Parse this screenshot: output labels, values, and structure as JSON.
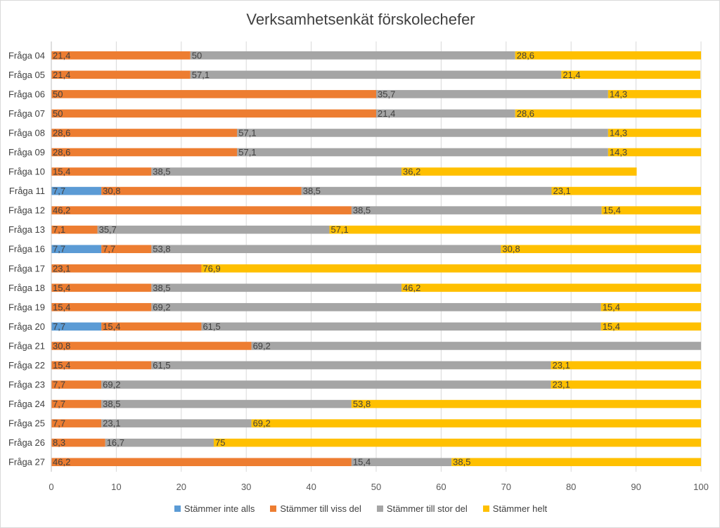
{
  "chart_data": {
    "type": "bar",
    "orientation": "horizontal",
    "stacked": true,
    "title": "Verksamhetsenkät förskolechefer",
    "xlabel": "",
    "ylabel": "",
    "xlim": [
      0,
      100
    ],
    "xticks": [
      "0",
      "10",
      "20",
      "30",
      "40",
      "50",
      "60",
      "70",
      "80",
      "90",
      "100"
    ],
    "grid": true,
    "legend_position": "bottom",
    "categories": [
      "Fråga 04",
      "Fråga 05",
      "Fråga 06",
      "Fråga 07",
      "Fråga 08",
      "Fråga 09",
      "Fråga 10",
      "Fråga 11",
      "Fråga 12",
      "Fråga 13",
      "Fråga 16",
      "Fråga 17",
      "Fråga 18",
      "Fråga 19",
      "Fråga 20",
      "Fråga 21",
      "Fråga 22",
      "Fråga 23",
      "Fråga 24",
      "Fråga 25",
      "Fråga 26",
      "Fråga 27"
    ],
    "series": [
      {
        "name": "Stämmer inte alls",
        "color": "#5b9bd5",
        "values": [
          0,
          0,
          0,
          0,
          0,
          0,
          0,
          7.7,
          0,
          0,
          7.7,
          0,
          0,
          0,
          7.7,
          0,
          0,
          0,
          0,
          0,
          0,
          0
        ],
        "labels": [
          "",
          "",
          "",
          "",
          "",
          "",
          "",
          "7,7",
          "",
          "",
          "7,7",
          "",
          "",
          "",
          "7,7",
          "",
          "",
          "",
          "",
          "",
          "",
          ""
        ]
      },
      {
        "name": "Stämmer till viss del",
        "color": "#ed7d31",
        "values": [
          21.4,
          21.4,
          50,
          50,
          28.6,
          28.6,
          15.4,
          30.8,
          46.2,
          7.1,
          7.7,
          23.1,
          15.4,
          15.4,
          15.4,
          30.8,
          15.4,
          7.7,
          7.7,
          7.7,
          8.3,
          46.2
        ],
        "labels": [
          "21,4",
          "21,4",
          "50",
          "50",
          "28,6",
          "28,6",
          "15,4",
          "30,8",
          "46,2",
          "7,1",
          "7,7",
          "23,1",
          "15,4",
          "15,4",
          "15,4",
          "30,8",
          "15,4",
          "7,7",
          "7,7",
          "7,7",
          "8,3",
          "46,2"
        ]
      },
      {
        "name": "Stämmer till stor del",
        "color": "#a5a5a5",
        "values": [
          50,
          57.1,
          35.7,
          21.4,
          57.1,
          57.1,
          38.5,
          38.5,
          38.5,
          35.7,
          53.8,
          0,
          38.5,
          69.2,
          61.5,
          69.2,
          61.5,
          69.2,
          38.5,
          23.1,
          16.7,
          15.4
        ],
        "labels": [
          "50",
          "57,1",
          "35,7",
          "21,4",
          "57,1",
          "57,1",
          "38,5",
          "38,5",
          "38,5",
          "35,7",
          "53,8",
          "",
          "38,5",
          "69,2",
          "61,5",
          "69,2",
          "61,5",
          "69,2",
          "38,5",
          "23,1",
          "16,7",
          "15,4"
        ]
      },
      {
        "name": "Stämmer helt",
        "color": "#ffc000",
        "values": [
          28.6,
          21.4,
          14.3,
          28.6,
          14.3,
          14.3,
          36.2,
          23.1,
          15.4,
          57.1,
          30.8,
          76.9,
          46.2,
          15.4,
          15.4,
          0,
          23.1,
          23.1,
          53.8,
          69.2,
          75,
          38.5
        ],
        "labels": [
          "28,6",
          "21,4",
          "14,3",
          "28,6",
          "14,3",
          "14,3",
          "36,2",
          "23,1",
          "15,4",
          "57,1",
          "30,8",
          "76,9",
          "46,2",
          "15,4",
          "15,4",
          "",
          "23,1",
          "23,1",
          "53,8",
          "69,2",
          "75",
          "38,5"
        ]
      }
    ]
  }
}
